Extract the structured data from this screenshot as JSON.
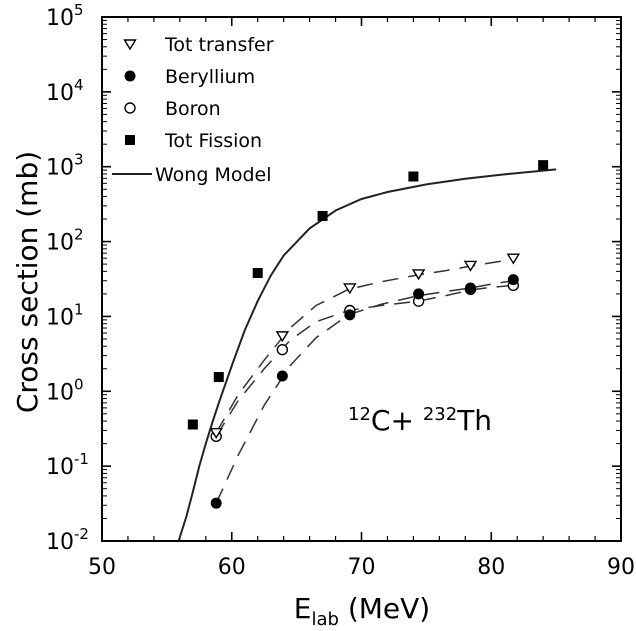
{
  "chart_data": {
    "type": "scatter",
    "xlabel": {
      "main": "E",
      "sub": "lab",
      "unit": " (MeV)"
    },
    "ylabel": "Cross section (mb)",
    "xlim": [
      50,
      90
    ],
    "ylim_log10": [
      -2,
      5
    ],
    "y_scale": "log",
    "grid": false,
    "legend_placement": "top-left",
    "x_ticks": [
      "50",
      "60",
      "70",
      "80",
      "90"
    ],
    "y_ticks": [
      {
        "base": "10",
        "exp": "-2"
      },
      {
        "base": "10",
        "exp": "-1"
      },
      {
        "base": "10",
        "exp": "0"
      },
      {
        "base": "10",
        "exp": "1"
      },
      {
        "base": "10",
        "exp": "2"
      },
      {
        "base": "10",
        "exp": "3"
      },
      {
        "base": "10",
        "exp": "4"
      },
      {
        "base": "10",
        "exp": "5"
      }
    ],
    "annotation": {
      "sup1": "12",
      "mid": "C+ ",
      "sup2": "232",
      "end": "Th"
    },
    "series": [
      {
        "name": "Tot  transfer",
        "marker": "triangle-down-open",
        "x": [
          58.8,
          63.9,
          69.1,
          74.4,
          78.4,
          81.7
        ],
        "y": [
          0.28,
          5.5,
          24,
          37,
          48,
          60
        ]
      },
      {
        "name": "Beryllium",
        "marker": "circle-filled",
        "x": [
          58.8,
          63.9,
          69.1,
          74.4,
          78.4,
          81.7
        ],
        "y": [
          0.032,
          1.6,
          10.5,
          20,
          24,
          31
        ]
      },
      {
        "name": "Boron",
        "marker": "circle-open",
        "x": [
          58.8,
          63.9,
          69.1,
          74.4,
          78.4,
          81.7
        ],
        "y": [
          0.25,
          3.6,
          12,
          16,
          23,
          26
        ]
      },
      {
        "name": "Tot   Fission",
        "marker": "square-filled",
        "x": [
          57,
          59,
          62,
          67,
          74,
          84
        ],
        "y": [
          0.36,
          1.55,
          38,
          220,
          740,
          1050
        ]
      },
      {
        "name": "Wong Model",
        "marker": "line-solid",
        "x": [
          55.9,
          56.5,
          57,
          57.5,
          58,
          58.5,
          59,
          60,
          61,
          62,
          63,
          64,
          66,
          68,
          70,
          72,
          75,
          78,
          81,
          85
        ],
        "y": [
          0.01,
          0.021,
          0.045,
          0.1,
          0.2,
          0.38,
          0.7,
          2.2,
          6.5,
          16,
          35,
          65,
          150,
          260,
          370,
          460,
          580,
          690,
          790,
          920
        ]
      }
    ],
    "fit_curves": [
      {
        "for": "Tot  transfer",
        "style": "dashed",
        "x": [
          58.8,
          60.5,
          62.5,
          64.5,
          66.5,
          69,
          71.5,
          74.4,
          76.5,
          78.4,
          80,
          81.7
        ],
        "y": [
          0.28,
          0.9,
          2.6,
          7,
          14,
          23,
          29,
          36,
          41,
          47,
          52,
          58
        ]
      },
      {
        "for": "Beryllium",
        "style": "dashed",
        "x": [
          58.8,
          60.5,
          62.5,
          64.5,
          66.5,
          69,
          71.5,
          74.4,
          76.5,
          78.4,
          80,
          81.7
        ],
        "y": [
          0.032,
          0.14,
          0.65,
          2.2,
          5.2,
          10.5,
          14.5,
          19,
          21.5,
          24,
          27,
          30
        ]
      },
      {
        "for": "Boron",
        "style": "dashed",
        "x": [
          58.8,
          60.5,
          62.5,
          64.5,
          66.5,
          69,
          71.5,
          74.4,
          76.5,
          78.4,
          80,
          81.7
        ],
        "y": [
          0.25,
          0.75,
          2.0,
          4.8,
          8.5,
          12,
          14,
          16,
          19,
          22.5,
          24.5,
          26
        ]
      }
    ]
  }
}
